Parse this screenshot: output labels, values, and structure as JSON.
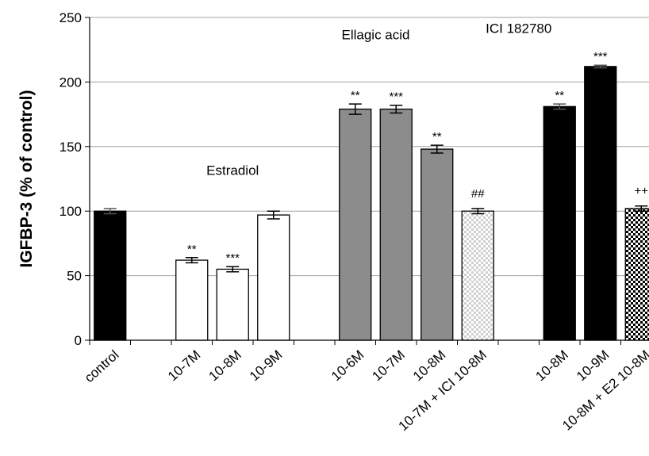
{
  "chart_data": {
    "type": "bar",
    "ylabel": "IGFBP-3 (% of control)",
    "ylim": [
      0,
      250
    ],
    "yticks": [
      0,
      50,
      100,
      150,
      200,
      250
    ],
    "grid": true,
    "categories": [
      "control",
      "10-7M",
      "10-8M",
      "10-9M",
      "10-6M",
      "10-7M",
      "10-8M",
      "10-7M + ICI 10-8M",
      "10-8M",
      "10-9M",
      "10-8M + E2 10-8M"
    ],
    "values": [
      100,
      62,
      55,
      97,
      179,
      179,
      148,
      100,
      181,
      212,
      102
    ],
    "errors": [
      2,
      2,
      2,
      3,
      4,
      3,
      3,
      2,
      2,
      1,
      2
    ],
    "styles": [
      "black",
      "white",
      "white",
      "white",
      "gray",
      "gray",
      "gray",
      "checker-light",
      "black",
      "black",
      "checker-dark"
    ],
    "annotations": [
      "",
      "**",
      "***",
      "",
      "**",
      "***",
      "**",
      "##",
      "**",
      "***",
      "++"
    ],
    "groups": [
      {
        "label": "Estradiol",
        "x_data": 3.0,
        "y_data": 128
      },
      {
        "label": "Ellagic acid",
        "x_data": 6.5,
        "y_data": 233
      },
      {
        "label": "ICI 182780",
        "x_data": 10.0,
        "y_data": 238
      }
    ]
  },
  "colors": {
    "black": "#000000",
    "white": "#ffffff",
    "gray": "#8c8c8c",
    "grid": "#a0a0a0",
    "checker_light_a": "#d8d8d8",
    "checker_light_b": "#ffffff",
    "checker_dark_a": "#000000",
    "checker_dark_b": "#ffffff"
  }
}
